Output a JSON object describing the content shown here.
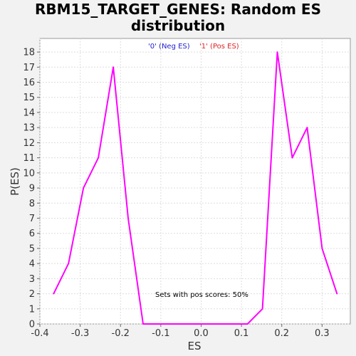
{
  "chart_data": {
    "type": "line",
    "title": "RBM15_TARGET_GENES: Random ES distribution",
    "xlabel": "ES",
    "ylabel": "P(ES)",
    "xlim": [
      -0.4,
      0.37
    ],
    "ylim": [
      0,
      18.9
    ],
    "x_ticks": [
      -0.4,
      -0.3,
      -0.2,
      -0.1,
      0.0,
      0.1,
      0.2,
      0.3
    ],
    "x_tick_labels": [
      "-0.4",
      "-0.3",
      "-0.2",
      "-0.1",
      "0.0",
      "0.1",
      "0.2",
      "0.3"
    ],
    "y_ticks": [
      0,
      1,
      2,
      3,
      4,
      5,
      6,
      7,
      8,
      9,
      10,
      11,
      12,
      13,
      14,
      15,
      16,
      17,
      18
    ],
    "grid": true,
    "legend_placement": "top-center",
    "series": [
      {
        "name": "'0' (Neg ES)",
        "color": "#2222cc",
        "x": [
          -0.366,
          -0.329,
          -0.292,
          -0.255,
          -0.218,
          -0.181,
          -0.144
        ],
        "y": [
          2,
          4,
          9,
          11,
          17,
          7,
          0
        ]
      },
      {
        "name": "'1' (Pos ES)",
        "color": "#dd2222",
        "x": [],
        "y": []
      }
    ],
    "combined_curve": {
      "color": "#ff00ff",
      "x": [
        -0.366,
        -0.329,
        -0.292,
        -0.255,
        -0.218,
        -0.181,
        -0.144,
        0.115,
        0.152,
        0.189,
        0.226,
        0.263,
        0.3,
        0.337
      ],
      "y": [
        2,
        4,
        9,
        11,
        17,
        7,
        0,
        0,
        1,
        18,
        11,
        13,
        5,
        2
      ]
    },
    "annotation": "Sets with pos scores: 50%"
  }
}
